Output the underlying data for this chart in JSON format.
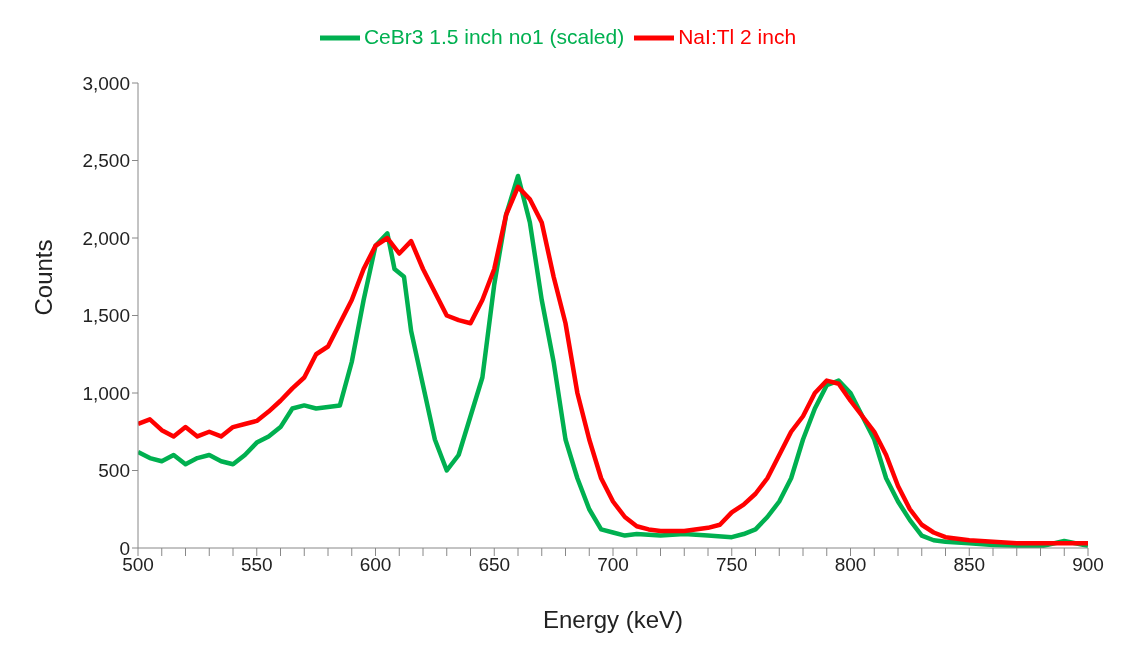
{
  "chart_data": {
    "type": "line",
    "xlabel": "Energy (keV)",
    "ylabel": "Counts",
    "xlim": [
      500,
      900
    ],
    "ylim": [
      0,
      3000
    ],
    "xticks": [
      500,
      {
        "value": 510,
        "label": null
      },
      {
        "value": 520,
        "label": null
      },
      {
        "value": 530,
        "label": null
      },
      {
        "value": 540,
        "label": null
      },
      550,
      {
        "value": 560,
        "label": null
      },
      {
        "value": 570,
        "label": null
      },
      {
        "value": 580,
        "label": null
      },
      {
        "value": 590,
        "label": null
      },
      600,
      {
        "value": 610,
        "label": null
      },
      {
        "value": 620,
        "label": null
      },
      {
        "value": 630,
        "label": null
      },
      {
        "value": 640,
        "label": null
      },
      650,
      {
        "value": 660,
        "label": null
      },
      {
        "value": 670,
        "label": null
      },
      {
        "value": 680,
        "label": null
      },
      {
        "value": 690,
        "label": null
      },
      700,
      {
        "value": 710,
        "label": null
      },
      {
        "value": 720,
        "label": null
      },
      {
        "value": 730,
        "label": null
      },
      {
        "value": 740,
        "label": null
      },
      750,
      {
        "value": 760,
        "label": null
      },
      {
        "value": 770,
        "label": null
      },
      {
        "value": 780,
        "label": null
      },
      {
        "value": 790,
        "label": null
      },
      800,
      {
        "value": 810,
        "label": null
      },
      {
        "value": 820,
        "label": null
      },
      {
        "value": 830,
        "label": null
      },
      {
        "value": 840,
        "label": null
      },
      850,
      {
        "value": 860,
        "label": null
      },
      {
        "value": 870,
        "label": null
      },
      {
        "value": 880,
        "label": null
      },
      {
        "value": 890,
        "label": null
      },
      900
    ],
    "yticks": [
      {
        "value": 0,
        "label": "0"
      },
      {
        "value": 500,
        "label": "500"
      },
      {
        "value": 1000,
        "label": "1,000"
      },
      {
        "value": 1500,
        "label": "1,500"
      },
      {
        "value": 2000,
        "label": "2,000"
      },
      {
        "value": 2500,
        "label": "2,500"
      },
      {
        "value": 3000,
        "label": "3,000"
      }
    ],
    "grid": false,
    "legend": "top",
    "marker": "none",
    "line_style": "solid",
    "series": [
      {
        "name": "CeBr3 1.5 inch no1 (scaled)",
        "color": "#00b050",
        "x": [
          500,
          505,
          510,
          515,
          520,
          525,
          530,
          535,
          540,
          545,
          550,
          555,
          560,
          565,
          570,
          575,
          580,
          585,
          590,
          595,
          600,
          605,
          608,
          612,
          615,
          620,
          625,
          630,
          635,
          640,
          645,
          650,
          655,
          660,
          665,
          670,
          675,
          680,
          685,
          690,
          695,
          700,
          705,
          710,
          720,
          730,
          740,
          750,
          755,
          760,
          765,
          770,
          775,
          780,
          785,
          790,
          795,
          800,
          805,
          810,
          815,
          820,
          825,
          830,
          835,
          840,
          850,
          860,
          870,
          880,
          890,
          900
        ],
        "values": [
          620,
          580,
          560,
          600,
          540,
          580,
          600,
          560,
          540,
          600,
          680,
          720,
          780,
          900,
          920,
          900,
          910,
          920,
          1200,
          1600,
          1950,
          2030,
          1800,
          1750,
          1400,
          1050,
          700,
          500,
          600,
          850,
          1100,
          1700,
          2150,
          2400,
          2100,
          1600,
          1200,
          700,
          450,
          250,
          120,
          100,
          80,
          90,
          80,
          90,
          80,
          70,
          90,
          120,
          200,
          300,
          450,
          700,
          900,
          1050,
          1080,
          1000,
          850,
          700,
          450,
          300,
          180,
          80,
          50,
          40,
          30,
          20,
          15,
          10,
          45,
          15
        ]
      },
      {
        "name": "NaI:Tl 2 inch",
        "color": "#ff0000",
        "x": [
          500,
          505,
          510,
          515,
          520,
          525,
          530,
          535,
          540,
          545,
          550,
          555,
          560,
          565,
          570,
          575,
          580,
          585,
          590,
          595,
          600,
          605,
          610,
          615,
          620,
          625,
          630,
          635,
          640,
          645,
          650,
          655,
          660,
          665,
          670,
          675,
          680,
          685,
          690,
          695,
          700,
          705,
          710,
          715,
          720,
          730,
          740,
          745,
          750,
          755,
          760,
          765,
          770,
          775,
          780,
          785,
          790,
          795,
          800,
          805,
          810,
          815,
          820,
          825,
          830,
          835,
          840,
          850,
          860,
          870,
          900
        ],
        "values": [
          800,
          830,
          760,
          720,
          780,
          720,
          750,
          720,
          780,
          800,
          820,
          880,
          950,
          1030,
          1100,
          1250,
          1300,
          1450,
          1600,
          1800,
          1950,
          2000,
          1900,
          1980,
          1800,
          1650,
          1500,
          1470,
          1450,
          1600,
          1800,
          2150,
          2330,
          2250,
          2100,
          1750,
          1450,
          1000,
          700,
          450,
          300,
          200,
          140,
          120,
          110,
          110,
          130,
          150,
          230,
          280,
          350,
          450,
          600,
          750,
          850,
          1000,
          1080,
          1060,
          950,
          850,
          750,
          600,
          400,
          250,
          150,
          100,
          70,
          50,
          40,
          30,
          30
        ]
      }
    ]
  }
}
